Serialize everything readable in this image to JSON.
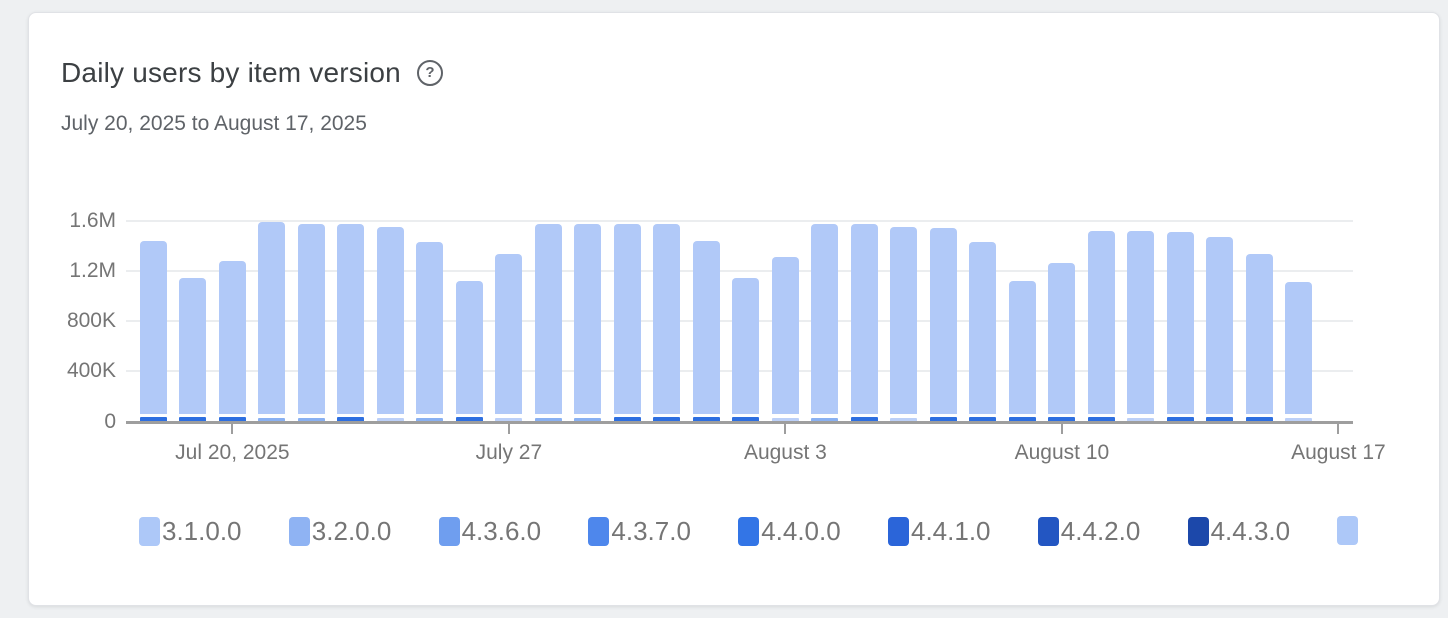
{
  "page": {
    "background": "#eef0f2"
  },
  "card": {
    "background": "#ffffff",
    "border_color": "#e0e2e6"
  },
  "header": {
    "title": "Daily users by item version",
    "help_icon_glyph": "?",
    "date_range": "July 20, 2025 to August 17, 2025"
  },
  "chart_data": {
    "type": "bar",
    "stacked": true,
    "title": "Daily users by item version",
    "subtitle": "July 20, 2025 to August 17, 2025",
    "xlabel": "",
    "ylabel": "",
    "ylim": [
      0,
      1600000
    ],
    "grid": true,
    "legend_position": "bottom",
    "y_ticks": [
      {
        "label": "1.6M",
        "value": 1600000
      },
      {
        "label": "1.2M",
        "value": 1200000
      },
      {
        "label": "800K",
        "value": 800000
      },
      {
        "label": "400K",
        "value": 400000
      },
      {
        "label": "0",
        "value": 0
      }
    ],
    "x_ticks": [
      {
        "label": "Jul 20, 2025",
        "day_index": 2
      },
      {
        "label": "July 27",
        "day_index": 9
      },
      {
        "label": "August 3",
        "day_index": 16
      },
      {
        "label": "August 10",
        "day_index": 23
      },
      {
        "label": "August 17",
        "day_index": 30
      }
    ],
    "legend": [
      {
        "label": "3.1.0.0",
        "color": "#adc8f8"
      },
      {
        "label": "3.2.0.0",
        "color": "#8fb3f3"
      },
      {
        "label": "4.3.6.0",
        "color": "#6f9eef"
      },
      {
        "label": "4.3.7.0",
        "color": "#4e87ec"
      },
      {
        "label": "4.4.0.0",
        "color": "#3375e6"
      },
      {
        "label": "4.4.1.0",
        "color": "#2b65d9"
      },
      {
        "label": "4.4.2.0",
        "color": "#2356c2"
      },
      {
        "label": "4.4.3.0",
        "color": "#1c48aa"
      },
      {
        "label": "",
        "color": "#adc8f8"
      }
    ],
    "colors": {
      "bar_body": "#b1c9f8",
      "base_strong": "#2e6fe0",
      "base_light": "#8ab1f2",
      "base_pale": "#bcd0f8",
      "axis_line": "#9e9e9e",
      "grid_line": "#ebedef",
      "axis_text": "#757575"
    },
    "bars": [
      {
        "date": "Jul 18",
        "total": 1440000,
        "base": "strong"
      },
      {
        "date": "Jul 19",
        "total": 1140000,
        "base": "strong"
      },
      {
        "date": "Jul 20",
        "total": 1280000,
        "base": "strong"
      },
      {
        "date": "Jul 21",
        "total": 1590000,
        "base": "light"
      },
      {
        "date": "Jul 22",
        "total": 1570000,
        "base": "light"
      },
      {
        "date": "Jul 23",
        "total": 1570000,
        "base": "strong"
      },
      {
        "date": "Jul 24",
        "total": 1550000,
        "base": "pale"
      },
      {
        "date": "Jul 25",
        "total": 1430000,
        "base": "light"
      },
      {
        "date": "Jul 26",
        "total": 1120000,
        "base": "strong"
      },
      {
        "date": "Jul 27",
        "total": 1330000,
        "base": "pale"
      },
      {
        "date": "Jul 28",
        "total": 1570000,
        "base": "light"
      },
      {
        "date": "Jul 29",
        "total": 1570000,
        "base": "light"
      },
      {
        "date": "Jul 30",
        "total": 1570000,
        "base": "strong"
      },
      {
        "date": "Jul 31",
        "total": 1570000,
        "base": "strong"
      },
      {
        "date": "Aug 1",
        "total": 1440000,
        "base": "strong"
      },
      {
        "date": "Aug 2",
        "total": 1140000,
        "base": "strong"
      },
      {
        "date": "Aug 3",
        "total": 1310000,
        "base": "pale"
      },
      {
        "date": "Aug 4",
        "total": 1570000,
        "base": "light"
      },
      {
        "date": "Aug 5",
        "total": 1570000,
        "base": "strong"
      },
      {
        "date": "Aug 6",
        "total": 1550000,
        "base": "pale"
      },
      {
        "date": "Aug 7",
        "total": 1540000,
        "base": "strong"
      },
      {
        "date": "Aug 8",
        "total": 1430000,
        "base": "strong"
      },
      {
        "date": "Aug 9",
        "total": 1120000,
        "base": "strong"
      },
      {
        "date": "Aug 10",
        "total": 1260000,
        "base": "strong"
      },
      {
        "date": "Aug 11",
        "total": 1520000,
        "base": "strong"
      },
      {
        "date": "Aug 12",
        "total": 1520000,
        "base": "pale"
      },
      {
        "date": "Aug 13",
        "total": 1510000,
        "base": "strong"
      },
      {
        "date": "Aug 14",
        "total": 1470000,
        "base": "strong"
      },
      {
        "date": "Aug 15",
        "total": 1330000,
        "base": "strong"
      },
      {
        "date": "Aug 16",
        "total": 1110000,
        "base": "pale"
      }
    ]
  }
}
